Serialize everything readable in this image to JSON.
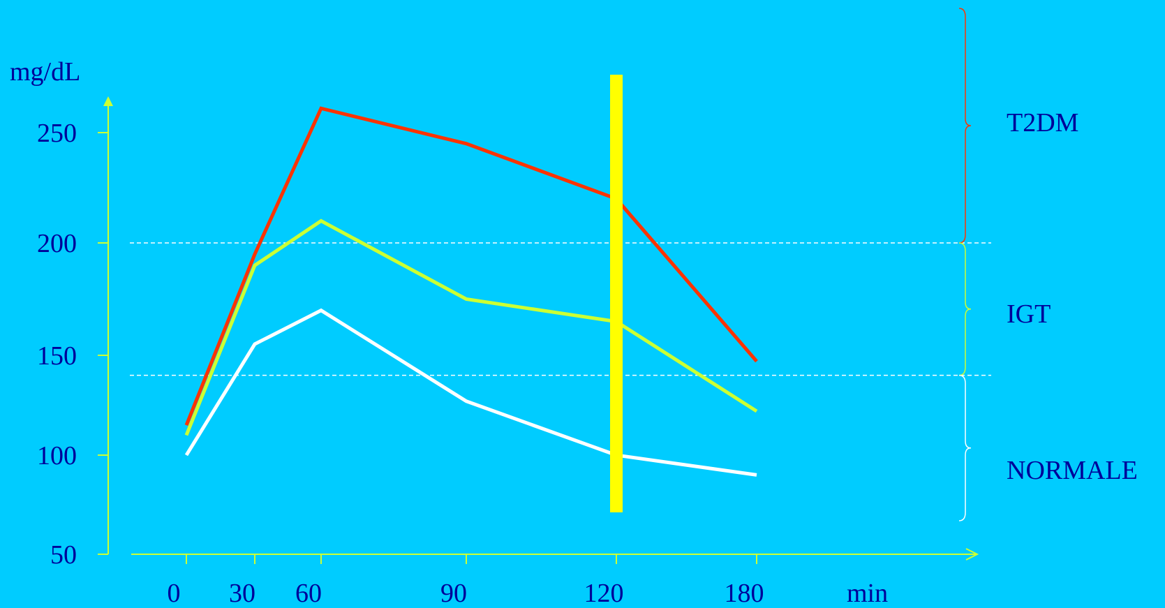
{
  "colors": {
    "background": "#00CCFF",
    "axis": "#CCFF33",
    "text": "#000099",
    "threshold": "#FFFFFF",
    "marker": "#FFFF00"
  },
  "chart_data": {
    "type": "line",
    "xlabel": "min",
    "ylabel": "mg/dL",
    "x_ticks": [
      "0",
      "30",
      "60",
      "90",
      "120",
      "180"
    ],
    "y_ticks": [
      "250",
      "200",
      "150",
      "100",
      "50"
    ],
    "ylim": [
      50,
      250
    ],
    "thresholds": [
      200,
      140
    ],
    "marker_x": 120,
    "series": [
      {
        "name": "T2DM",
        "color": "#FF3300",
        "x": [
          0,
          30,
          60,
          90,
          120,
          180
        ],
        "y": [
          115,
          195,
          261,
          245,
          220,
          147
        ]
      },
      {
        "name": "IGT",
        "color": "#CCFF33",
        "x": [
          0,
          30,
          60,
          90,
          120,
          180
        ],
        "y": [
          110,
          190,
          210,
          175,
          165,
          122
        ]
      },
      {
        "name": "NORMALE",
        "color": "#FFFFFF",
        "x": [
          0,
          30,
          60,
          90,
          120,
          180
        ],
        "y": [
          100,
          155,
          170,
          127,
          100,
          90
        ]
      }
    ],
    "ranges": [
      {
        "name": "T2DM",
        "color": "#FF3300"
      },
      {
        "name": "IGT",
        "color": "#CCFF33"
      },
      {
        "name": "NORMALE",
        "color": "#FFFFFF"
      }
    ]
  }
}
